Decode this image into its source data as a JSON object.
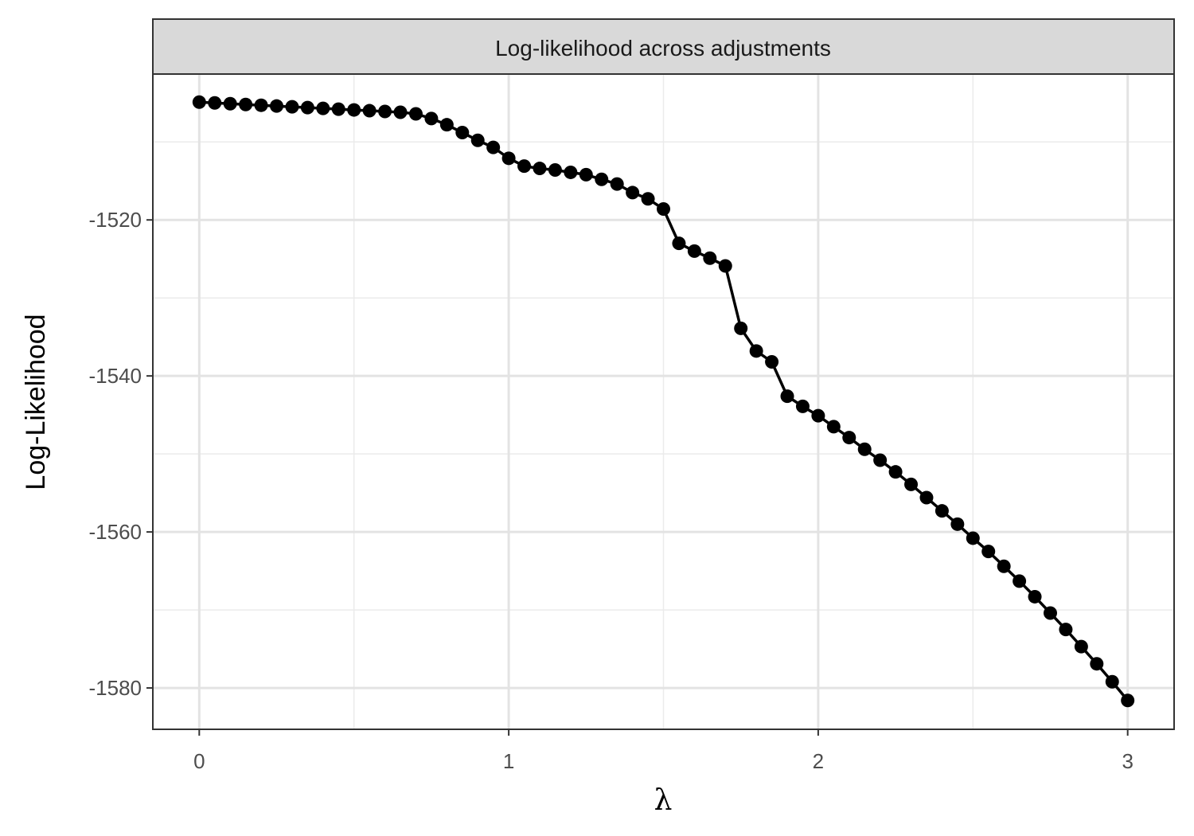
{
  "chart_data": {
    "type": "line",
    "title": "Log-likelihood across adjustments",
    "xlabel": "λ",
    "ylabel": "Log-Likelihood",
    "xlim": [
      -0.15,
      3.15
    ],
    "ylim": [
      -1585.3,
      -1501.3
    ],
    "xticks": [
      0,
      1,
      2,
      3
    ],
    "yticks": [
      -1520,
      -1540,
      -1560,
      -1580
    ],
    "xtick_labels": [
      "0",
      "1",
      "2",
      "3"
    ],
    "ytick_labels": [
      "-1520",
      "-1540",
      "-1560",
      "-1580"
    ],
    "grid": true,
    "legend": "none",
    "series": [
      {
        "markers": true,
        "color": "#000000",
        "x": [
          0,
          0.05,
          0.1,
          0.15,
          0.2,
          0.25,
          0.3,
          0.35,
          0.4,
          0.45,
          0.5,
          0.55,
          0.6,
          0.65,
          0.7,
          0.75,
          0.8,
          0.85,
          0.9,
          0.95,
          1,
          1.05,
          1.1,
          1.15,
          1.2,
          1.25,
          1.3,
          1.35,
          1.4,
          1.45,
          1.5,
          1.55,
          1.6,
          1.65,
          1.7,
          1.75,
          1.8,
          1.85,
          1.9,
          1.95,
          2,
          2.05,
          2.1,
          2.15,
          2.2,
          2.25,
          2.3,
          2.35,
          2.4,
          2.45,
          2.5,
          2.55,
          2.6,
          2.65,
          2.7,
          2.75,
          2.8,
          2.85,
          2.9,
          2.95,
          3
        ],
        "y": [
          -1504.9,
          -1505.0,
          -1505.1,
          -1505.2,
          -1505.3,
          -1505.4,
          -1505.5,
          -1505.6,
          -1505.7,
          -1505.8,
          -1505.9,
          -1506.0,
          -1506.1,
          -1506.2,
          -1506.4,
          -1507.0,
          -1507.8,
          -1508.8,
          -1509.8,
          -1510.7,
          -1512.1,
          -1513.1,
          -1513.4,
          -1513.6,
          -1513.9,
          -1514.2,
          -1514.8,
          -1515.4,
          -1516.5,
          -1517.3,
          -1518.6,
          -1523.0,
          -1524.0,
          -1524.9,
          -1525.9,
          -1533.9,
          -1536.8,
          -1538.2,
          -1542.6,
          -1543.9,
          -1545.1,
          -1546.5,
          -1547.9,
          -1549.4,
          -1550.8,
          -1552.3,
          -1553.9,
          -1555.6,
          -1557.3,
          -1559.0,
          -1560.8,
          -1562.5,
          -1564.4,
          -1566.3,
          -1568.3,
          -1570.4,
          -1572.5,
          -1574.7,
          -1576.9,
          -1579.2,
          -1581.6
        ]
      }
    ]
  }
}
